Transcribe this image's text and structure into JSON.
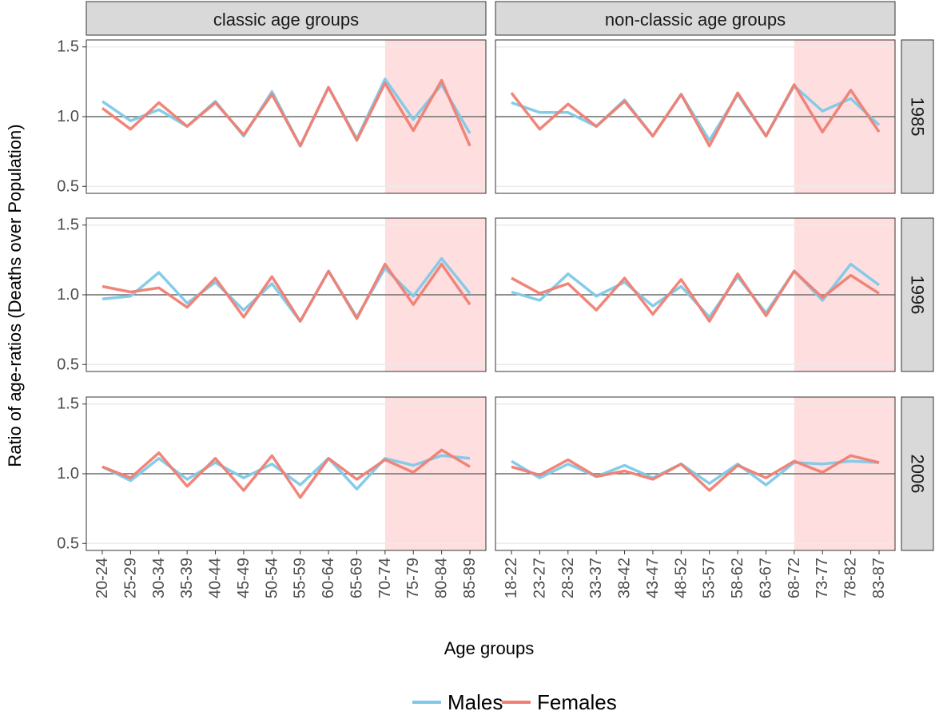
{
  "chart_data": {
    "type": "line",
    "xlabel": "Age groups",
    "ylabel": "Ratio of age-ratios (Deaths over Population)",
    "ylim": [
      0.45,
      1.55
    ],
    "y_ticks": [
      0.5,
      1.0,
      1.5
    ],
    "y_tick_labels": [
      "0.5",
      "1.0",
      "1.5"
    ],
    "reference_line": 1.0,
    "grid": true,
    "legend_position": "bottom",
    "legend": [
      {
        "name": "Males",
        "color": "#7ec9e8"
      },
      {
        "name": "Females",
        "color": "#f07e73"
      }
    ],
    "columns": [
      {
        "label": "classic age groups",
        "categories": [
          "20-24",
          "25-29",
          "30-34",
          "35-39",
          "40-44",
          "45-49",
          "50-54",
          "55-59",
          "60-64",
          "65-69",
          "70-74",
          "75-79",
          "80-84",
          "85-89"
        ],
        "shade_from": "70-74"
      },
      {
        "label": "non-classic age groups",
        "categories": [
          "18-22",
          "23-27",
          "28-32",
          "33-37",
          "38-42",
          "43-47",
          "48-52",
          "53-57",
          "58-62",
          "63-67",
          "68-72",
          "73-77",
          "78-82",
          "83-87"
        ],
        "shade_from": "68-72"
      }
    ],
    "rows": [
      {
        "label": "1985",
        "panels": [
          {
            "series": [
              {
                "name": "Males",
                "values": [
                  1.11,
                  0.97,
                  1.05,
                  0.93,
                  1.11,
                  0.86,
                  1.18,
                  0.79,
                  1.21,
                  0.84,
                  1.27,
                  0.98,
                  1.23,
                  0.88
                ]
              },
              {
                "name": "Females",
                "values": [
                  1.06,
                  0.91,
                  1.1,
                  0.93,
                  1.1,
                  0.87,
                  1.16,
                  0.79,
                  1.21,
                  0.83,
                  1.24,
                  0.9,
                  1.26,
                  0.79
                ]
              }
            ]
          },
          {
            "series": [
              {
                "name": "Males",
                "values": [
                  1.1,
                  1.03,
                  1.03,
                  0.93,
                  1.12,
                  0.86,
                  1.16,
                  0.83,
                  1.16,
                  0.86,
                  1.22,
                  1.04,
                  1.13,
                  0.94
                ]
              },
              {
                "name": "Females",
                "values": [
                  1.17,
                  0.91,
                  1.09,
                  0.93,
                  1.11,
                  0.86,
                  1.16,
                  0.79,
                  1.17,
                  0.86,
                  1.23,
                  0.89,
                  1.19,
                  0.89
                ]
              }
            ]
          }
        ]
      },
      {
        "label": "1996",
        "panels": [
          {
            "series": [
              {
                "name": "Males",
                "values": [
                  0.97,
                  0.99,
                  1.16,
                  0.94,
                  1.09,
                  0.89,
                  1.08,
                  0.81,
                  1.17,
                  0.84,
                  1.19,
                  0.99,
                  1.26,
                  1.01
                ]
              },
              {
                "name": "Females",
                "values": [
                  1.06,
                  1.02,
                  1.05,
                  0.91,
                  1.12,
                  0.84,
                  1.13,
                  0.81,
                  1.17,
                  0.83,
                  1.22,
                  0.93,
                  1.22,
                  0.93
                ]
              }
            ]
          },
          {
            "series": [
              {
                "name": "Males",
                "values": [
                  1.02,
                  0.96,
                  1.15,
                  0.99,
                  1.09,
                  0.92,
                  1.06,
                  0.84,
                  1.13,
                  0.87,
                  1.17,
                  0.96,
                  1.22,
                  1.07
                ]
              },
              {
                "name": "Females",
                "values": [
                  1.12,
                  1.01,
                  1.08,
                  0.89,
                  1.12,
                  0.86,
                  1.11,
                  0.81,
                  1.15,
                  0.85,
                  1.17,
                  0.98,
                  1.14,
                  1.01
                ]
              }
            ]
          }
        ]
      },
      {
        "label": "2006",
        "panels": [
          {
            "series": [
              {
                "name": "Males",
                "values": [
                  1.05,
                  0.95,
                  1.11,
                  0.96,
                  1.08,
                  0.97,
                  1.07,
                  0.92,
                  1.11,
                  0.89,
                  1.11,
                  1.06,
                  1.13,
                  1.11
                ]
              },
              {
                "name": "Females",
                "values": [
                  1.05,
                  0.97,
                  1.15,
                  0.91,
                  1.11,
                  0.88,
                  1.13,
                  0.83,
                  1.11,
                  0.96,
                  1.1,
                  1.01,
                  1.17,
                  1.05
                ]
              }
            ]
          },
          {
            "series": [
              {
                "name": "Males",
                "values": [
                  1.09,
                  0.97,
                  1.07,
                  0.98,
                  1.06,
                  0.97,
                  1.07,
                  0.93,
                  1.07,
                  0.92,
                  1.08,
                  1.07,
                  1.09,
                  1.08
                ]
              },
              {
                "name": "Females",
                "values": [
                  1.05,
                  0.99,
                  1.1,
                  0.98,
                  1.02,
                  0.96,
                  1.07,
                  0.88,
                  1.06,
                  0.97,
                  1.09,
                  1.01,
                  1.13,
                  1.08
                ]
              }
            ]
          }
        ]
      }
    ]
  },
  "style": {
    "shade_color": "#ffdedf",
    "strip_color": "#d9d9d9",
    "reference_line_color": "#6e6e6e",
    "grid_color": "#ebebeb",
    "axis_text_color": "#4d4d4d"
  }
}
